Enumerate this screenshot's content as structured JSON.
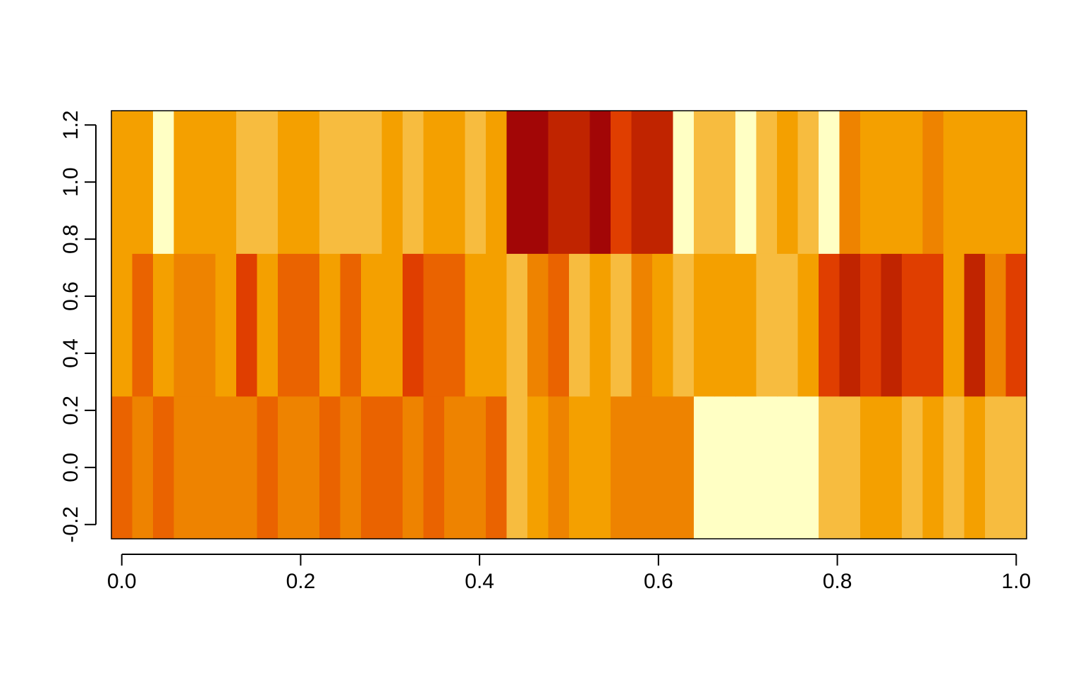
{
  "chart_data": {
    "type": "heatmap",
    "title": "",
    "xlabel": "",
    "ylabel": "",
    "xlim": [
      -0.0116,
      1.0116
    ],
    "ylim": [
      -0.25,
      1.25
    ],
    "x_ticks": [
      "0.0",
      "0.2",
      "0.4",
      "0.6",
      "0.8",
      "1.0"
    ],
    "y_ticks": [
      "-0.2",
      "0.0",
      "0.2",
      "0.4",
      "0.6",
      "0.8",
      "1.0",
      "1.2"
    ],
    "grid": false,
    "legend": "none",
    "n_cols": 44,
    "row_centers": [
      0,
      0.5,
      1
    ],
    "rows_bottom_to_top": [
      [
        4,
        3,
        4,
        3,
        3,
        3,
        3,
        4,
        3,
        3,
        4,
        3,
        4,
        4,
        3,
        4,
        3,
        3,
        4,
        1,
        2,
        3,
        2,
        2,
        3,
        3,
        3,
        3,
        0,
        0,
        0,
        0,
        0,
        0,
        1,
        1,
        2,
        2,
        1,
        2,
        1,
        2,
        1,
        1
      ],
      [
        2,
        4,
        2,
        3,
        3,
        2,
        5,
        2,
        4,
        4,
        2,
        4,
        2,
        2,
        5,
        4,
        4,
        2,
        2,
        1,
        3,
        4,
        1,
        2,
        1,
        3,
        2,
        1,
        2,
        2,
        2,
        1,
        1,
        2,
        5,
        6,
        5,
        6,
        5,
        5,
        2,
        6,
        3,
        5
      ],
      [
        2,
        2,
        0,
        2,
        2,
        2,
        1,
        1,
        2,
        2,
        1,
        1,
        1,
        2,
        1,
        2,
        2,
        1,
        2,
        7,
        7,
        6,
        6,
        7,
        5,
        6,
        6,
        0,
        1,
        1,
        0,
        1,
        2,
        1,
        0,
        3,
        2,
        2,
        2,
        3,
        2,
        2,
        2,
        2
      ]
    ],
    "palette": [
      "#FFFFC4",
      "#F7BC3F",
      "#F4A000",
      "#EE8300",
      "#EA6300",
      "#E03E00",
      "#C02400",
      "#A20606",
      "#7B0028"
    ]
  }
}
